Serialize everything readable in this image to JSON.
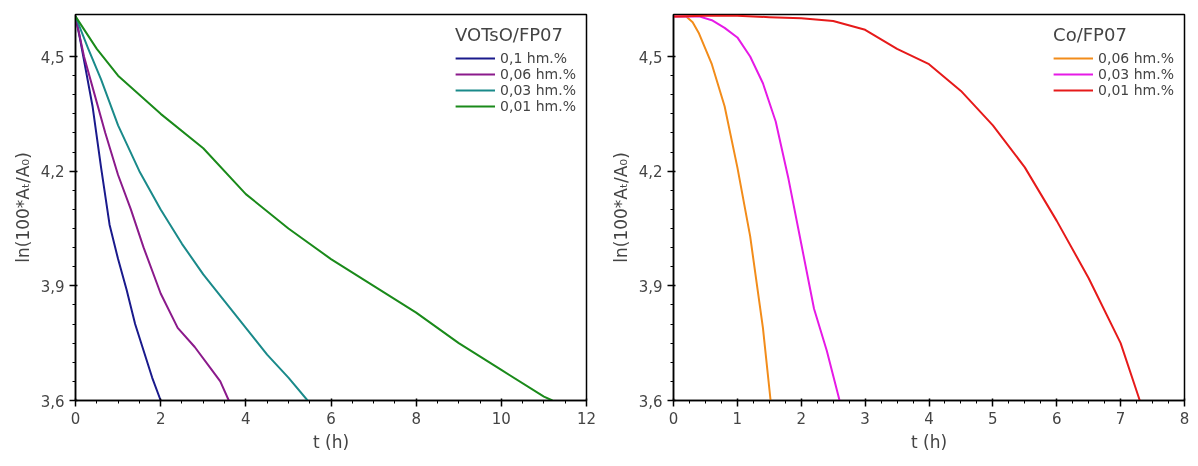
{
  "chart_data": [
    {
      "type": "line",
      "legend_title": "VOTsO/FP07",
      "xlabel": "t (h)",
      "ylabel": "ln(100*Aₜ/A₀)",
      "xlim": [
        0,
        12
      ],
      "xticks": [
        0,
        2,
        4,
        6,
        8,
        10,
        12
      ],
      "ylim": [
        3.6,
        4.61
      ],
      "yticks": [
        {
          "value": 3.6,
          "label": "3,6"
        },
        {
          "value": 3.9,
          "label": "3,9"
        },
        {
          "value": 4.2,
          "label": "4,2"
        },
        {
          "value": 4.5,
          "label": "4,5"
        }
      ],
      "legend": "top right",
      "grid": false,
      "series": [
        {
          "name": "0,1 hm.%",
          "color": "#1a1a8c",
          "x": [
            0,
            0.1,
            0.2,
            0.4,
            0.6,
            0.8,
            1.0,
            1.2,
            1.4,
            1.6,
            1.8,
            2.0
          ],
          "values": [
            4.605,
            4.55,
            4.49,
            4.37,
            4.21,
            4.06,
            3.97,
            3.89,
            3.8,
            3.73,
            3.66,
            3.6
          ]
        },
        {
          "name": "0,06 hm.%",
          "color": "#8b1a8b",
          "x": [
            0,
            0.2,
            0.4,
            0.7,
            1.0,
            1.3,
            1.6,
            2.0,
            2.4,
            2.8,
            3.2,
            3.4,
            3.6
          ],
          "values": [
            4.605,
            4.5,
            4.42,
            4.3,
            4.19,
            4.1,
            4.0,
            3.88,
            3.79,
            3.74,
            3.68,
            3.65,
            3.6
          ]
        },
        {
          "name": "0,03 hm.%",
          "color": "#1a8a8a",
          "x": [
            0,
            0.3,
            0.6,
            1.0,
            1.5,
            2.0,
            2.5,
            3.0,
            3.5,
            4.0,
            4.5,
            5.0,
            5.45
          ],
          "values": [
            4.605,
            4.52,
            4.44,
            4.32,
            4.2,
            4.1,
            4.01,
            3.93,
            3.86,
            3.79,
            3.72,
            3.66,
            3.6
          ]
        },
        {
          "name": "0,01 hm.%",
          "color": "#1a8a1a",
          "x": [
            0,
            0.5,
            1,
            1.5,
            2,
            3,
            4,
            5,
            6,
            7,
            8,
            9,
            10,
            11,
            11.2
          ],
          "values": [
            4.605,
            4.52,
            4.45,
            4.4,
            4.35,
            4.26,
            4.14,
            4.05,
            3.97,
            3.9,
            3.83,
            3.75,
            3.68,
            3.61,
            3.6
          ]
        }
      ]
    },
    {
      "type": "line",
      "legend_title": "Co/FP07",
      "xlabel": "t (h)",
      "ylabel": "ln(100*Aₜ/A₀)",
      "xlim": [
        0,
        8
      ],
      "xticks": [
        0,
        1,
        2,
        3,
        4,
        5,
        6,
        7,
        8
      ],
      "ylim": [
        3.6,
        4.61
      ],
      "yticks": [
        {
          "value": 3.6,
          "label": "3,6"
        },
        {
          "value": 3.9,
          "label": "3,9"
        },
        {
          "value": 4.2,
          "label": "4,2"
        },
        {
          "value": 4.5,
          "label": "4,5"
        }
      ],
      "legend": "top right",
      "grid": false,
      "series": [
        {
          "name": "0,06 hm.%",
          "color": "#f28c1a",
          "x": [
            0,
            0.2,
            0.3,
            0.4,
            0.5,
            0.6,
            0.8,
            1.0,
            1.2,
            1.4,
            1.52
          ],
          "values": [
            4.605,
            4.605,
            4.59,
            4.56,
            4.52,
            4.48,
            4.37,
            4.21,
            4.03,
            3.79,
            3.6
          ]
        },
        {
          "name": "0,03 hm.%",
          "color": "#e61ae6",
          "x": [
            0,
            0.4,
            0.6,
            0.8,
            1.0,
            1.2,
            1.4,
            1.6,
            1.8,
            2.0,
            2.2,
            2.4,
            2.6
          ],
          "values": [
            4.605,
            4.605,
            4.595,
            4.575,
            4.55,
            4.5,
            4.43,
            4.33,
            4.18,
            4.01,
            3.84,
            3.73,
            3.6
          ]
        },
        {
          "name": "0,01 hm.%",
          "color": "#e61a1a",
          "x": [
            0,
            0.5,
            1.0,
            1.5,
            2,
            2.5,
            3.0,
            3.5,
            4.0,
            4.5,
            5.0,
            5.5,
            6.0,
            6.5,
            7.0,
            7.3
          ],
          "values": [
            4.605,
            4.607,
            4.607,
            4.603,
            4.6,
            4.593,
            4.57,
            4.52,
            4.48,
            4.41,
            4.32,
            4.21,
            4.07,
            3.92,
            3.75,
            3.6
          ]
        }
      ]
    }
  ]
}
